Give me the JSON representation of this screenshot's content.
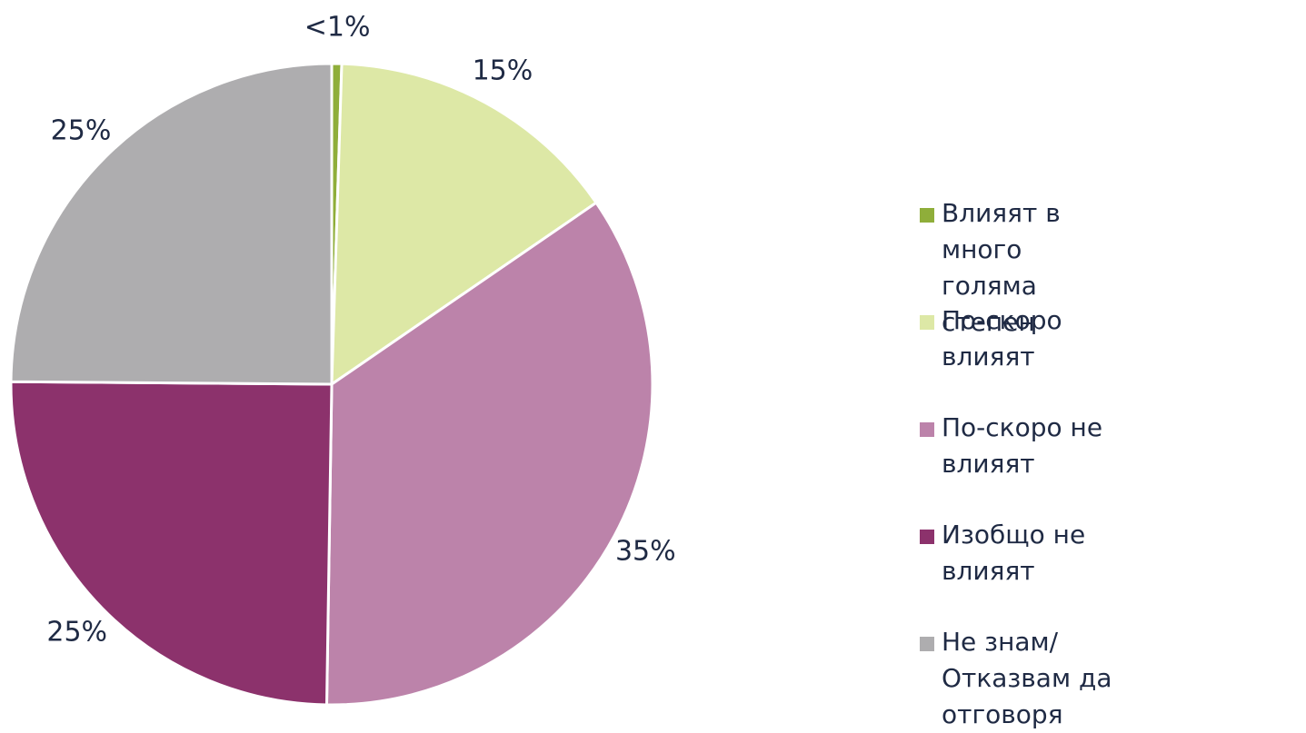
{
  "chart_data": {
    "type": "pie",
    "categories": [
      "Влияят в много голяма степен",
      "По-скоро влияят",
      "По-скоро не влияят",
      "Изобщо не влияят",
      "Не знам/Отказвам да отговоря"
    ],
    "values": [
      0.5,
      15,
      35,
      25,
      25
    ],
    "value_labels": [
      "<1%",
      "15%",
      "35%",
      "25%",
      "25%"
    ],
    "colors": [
      "#8fae3a",
      "#dde8a6",
      "#bc83aa",
      "#8c326c",
      "#aeadaf"
    ],
    "legend": "right"
  }
}
